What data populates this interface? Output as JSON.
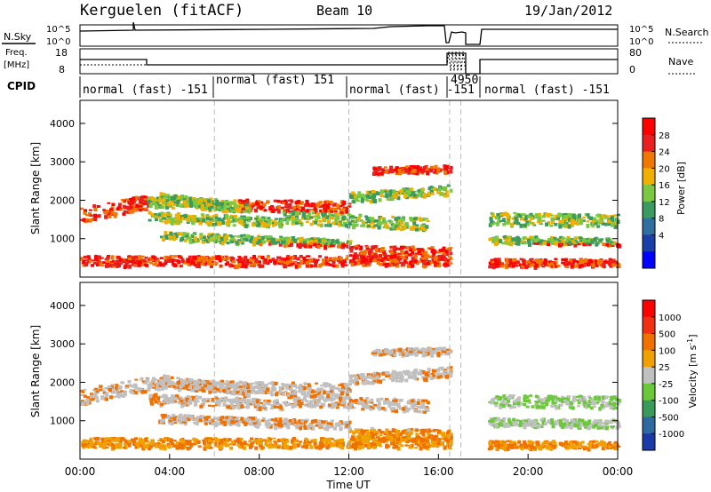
{
  "header": {
    "station": "Kerguelen (fitACF)",
    "beam": "Beam 10",
    "date": "19/Jan/2012"
  },
  "noise_panel": {
    "left_label": "N.Sky",
    "right_label": "N.Search",
    "left_ticks": [
      "10^5",
      "10^0"
    ],
    "right_ticks": [
      "10^5",
      "10^0"
    ]
  },
  "freq_panel": {
    "left_label_top": "Freq.",
    "left_label_bottom": "[MHz]",
    "right_label": "Nave",
    "left_ticks": [
      "18",
      "8"
    ],
    "right_ticks": [
      "80",
      "0"
    ]
  },
  "cpid": {
    "label": "CPID",
    "segments": [
      "normal (fast) -151",
      "normal (fast) 151",
      "normal (fast) -151",
      "4950",
      "normal (fast) -151"
    ]
  },
  "chart_data": [
    {
      "type": "heatmap",
      "title": "Power [dB]",
      "ylabel": "Slant Range [km]",
      "xlabel": "",
      "x_range": [
        "00:00",
        "24:00"
      ],
      "ylim": [
        0,
        4600
      ],
      "y_ticks": [
        "1000",
        "2000",
        "3000",
        "4000"
      ],
      "colorbar_label": "Power [dB]",
      "colorbar_ticks": [
        "28",
        "24",
        "20",
        "16",
        "12",
        "8",
        "4"
      ],
      "colorscale": [
        "#0000ff",
        "#1a3fa8",
        "#3070a0",
        "#3a9a60",
        "#7ac843",
        "#f0b000",
        "#f07800",
        "#e82020",
        "#ff0000"
      ]
    },
    {
      "type": "heatmap",
      "title": "Velocity [m s-1]",
      "ylabel": "Slant Range [km]",
      "xlabel": "Time UT",
      "x_ticks": [
        "00:00",
        "04:00",
        "08:00",
        "12:00",
        "16:00",
        "20:00",
        "00:00"
      ],
      "ylim": [
        0,
        4600
      ],
      "y_ticks": [
        "1000",
        "2000",
        "3000",
        "4000"
      ],
      "colorbar_label": "Velocity [m s",
      "colorbar_unit_exp": "-1",
      "colorbar_unit_end": "]",
      "colorbar_ticks": [
        "1000",
        "500",
        "100",
        "25",
        "-25",
        "-100",
        "-500",
        "-1000"
      ],
      "colorscale": [
        "#1a3aa8",
        "#2e6a9e",
        "#3a9a5a",
        "#6ac83a",
        "#c0c0c0",
        "#f0a000",
        "#f07000",
        "#f03010",
        "#ff0000"
      ]
    }
  ]
}
